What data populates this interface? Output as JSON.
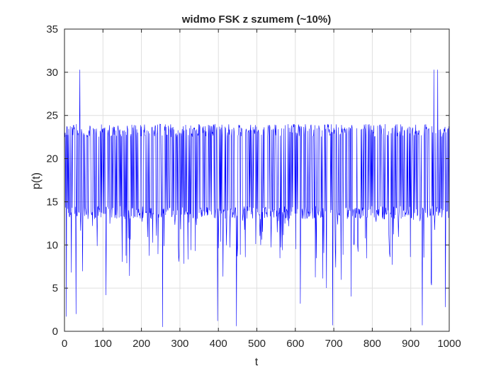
{
  "chart_data": {
    "type": "line",
    "title": "widmo FSK z szumem (~10%)",
    "xlabel": "t",
    "ylabel": "p(t)",
    "xlim": [
      0,
      1000
    ],
    "ylim": [
      0,
      35
    ],
    "xticks": [
      0,
      100,
      200,
      300,
      400,
      500,
      600,
      700,
      800,
      900,
      1000
    ],
    "yticks": [
      0,
      5,
      10,
      15,
      20,
      25,
      30,
      35
    ],
    "grid": true,
    "series": [
      {
        "color": "#0000ff",
        "n_points": 1000,
        "typical_range": [
          13,
          24
        ],
        "median": 19,
        "peaks": [
          {
            "x": 30,
            "y": 30.3
          },
          {
            "x": 40,
            "y": 30.3
          },
          {
            "x": 960,
            "y": 30.3
          },
          {
            "x": 970,
            "y": 30.3
          }
        ],
        "deep_dips": [
          {
            "x": 5,
            "y": 1.7
          },
          {
            "x": 30,
            "y": 2.0
          },
          {
            "x": 255,
            "y": 0.5
          },
          {
            "x": 398,
            "y": 1.2
          },
          {
            "x": 447,
            "y": 0.6
          },
          {
            "x": 613,
            "y": 3.2
          },
          {
            "x": 697,
            "y": 0.7
          },
          {
            "x": 930,
            "y": 0.7
          },
          {
            "x": 990,
            "y": 2.8
          }
        ]
      }
    ]
  }
}
